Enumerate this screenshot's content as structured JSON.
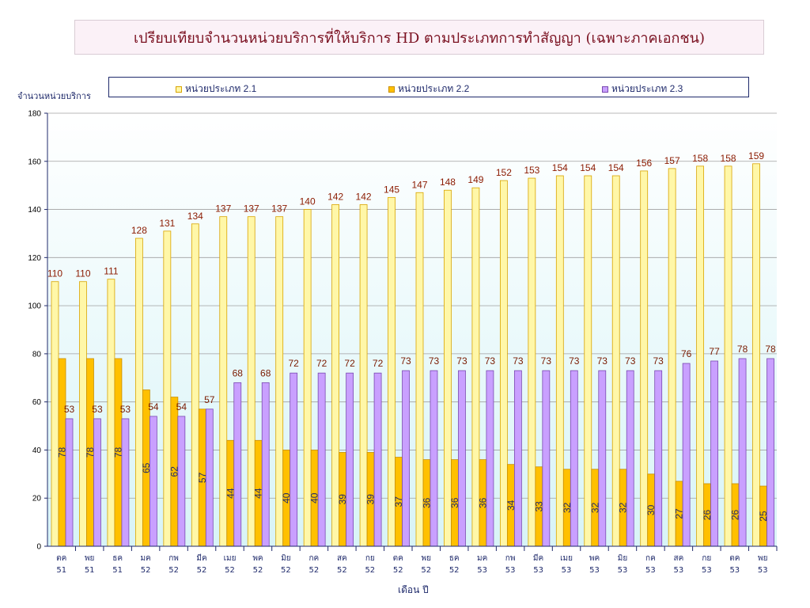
{
  "title": "เปรียบเทียบจำนวนหน่วยบริการที่ให้บริการ HD ตามประเภทการทำสัญญา (เฉพาะภาคเอกชน)",
  "colors": {
    "series1": "#fff7a8",
    "series1_edge": "#d9a400",
    "series2": "#ffc000",
    "series2_edge": "#c98f00",
    "series3": "#c9a0ff",
    "series3_edge": "#7a4ab0",
    "label1": "#8b1a00",
    "label2": "#1f2a6b",
    "label3": "#7a1a00",
    "grid": "#a0a0a0",
    "axis": "#1f2a6b"
  },
  "chart_data": {
    "type": "bar",
    "ylabel": "จำนวนหน่วยบริการ",
    "xlabel": "เดือน ปี",
    "ylim": [
      0,
      180
    ],
    "yticks": [
      0,
      20,
      40,
      60,
      80,
      100,
      120,
      140,
      160,
      180
    ],
    "grid": true,
    "legend_position": "top",
    "categories": [
      [
        "ตค",
        "51"
      ],
      [
        "พย",
        "51"
      ],
      [
        "ธค",
        "51"
      ],
      [
        "มค",
        "52"
      ],
      [
        "กพ",
        "52"
      ],
      [
        "มีค",
        "52"
      ],
      [
        "เมย",
        "52"
      ],
      [
        "พค",
        "52"
      ],
      [
        "มิย",
        "52"
      ],
      [
        "กค",
        "52"
      ],
      [
        "สค",
        "52"
      ],
      [
        "กย",
        "52"
      ],
      [
        "ตค",
        "52"
      ],
      [
        "พย",
        "52"
      ],
      [
        "ธค",
        "52"
      ],
      [
        "มค",
        "53"
      ],
      [
        "กพ",
        "53"
      ],
      [
        "มีค",
        "53"
      ],
      [
        "เมย",
        "53"
      ],
      [
        "พค",
        "53"
      ],
      [
        "มิย",
        "53"
      ],
      [
        "กค",
        "53"
      ],
      [
        "สค",
        "53"
      ],
      [
        "กย",
        "53"
      ],
      [
        "ตค",
        "53"
      ],
      [
        "พย",
        "53"
      ]
    ],
    "series": [
      {
        "name": "หน่วยประเภท 2.1",
        "values": [
          110,
          110,
          111,
          128,
          131,
          134,
          137,
          137,
          137,
          140,
          142,
          142,
          145,
          147,
          148,
          149,
          152,
          153,
          154,
          154,
          154,
          156,
          157,
          158,
          158,
          159
        ]
      },
      {
        "name": "หน่วยประเภท 2.2",
        "values": [
          78,
          78,
          78,
          65,
          62,
          57,
          44,
          44,
          40,
          40,
          39,
          39,
          37,
          36,
          36,
          36,
          34,
          33,
          32,
          32,
          32,
          30,
          27,
          26,
          26,
          25
        ]
      },
      {
        "name": "หน่วยประเภท 2.3",
        "values": [
          53,
          53,
          53,
          54,
          54,
          57,
          68,
          68,
          72,
          72,
          72,
          72,
          73,
          73,
          73,
          73,
          73,
          73,
          73,
          73,
          73,
          73,
          76,
          77,
          78,
          78
        ]
      }
    ]
  }
}
